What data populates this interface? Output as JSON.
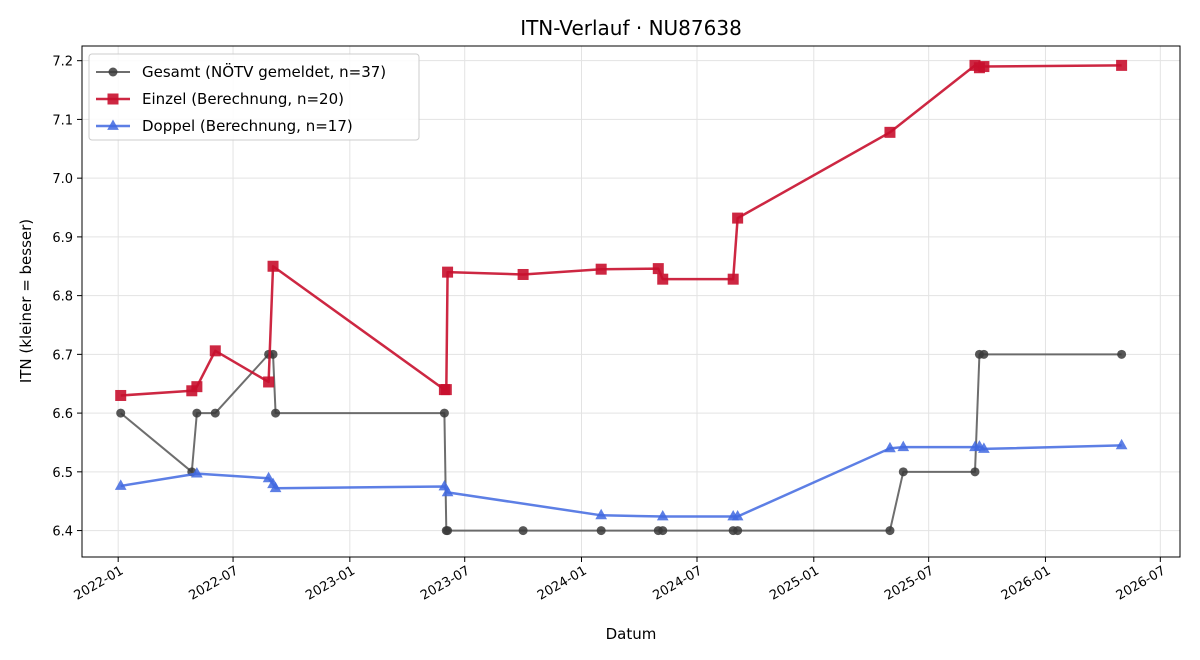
{
  "chart_data": {
    "type": "line",
    "title": "ITN-Verlauf · NU87638",
    "xlabel": "Datum",
    "ylabel": "ITN  (kleiner = besser)",
    "x_axis_type": "date",
    "xlim": [
      "2021-11-05",
      "2026-08-01"
    ],
    "ylim": [
      6.355,
      7.225
    ],
    "y_ticks": [
      6.4,
      6.5,
      6.6,
      6.7,
      6.8,
      6.9,
      7.0,
      7.1,
      7.2
    ],
    "x_ticks": [
      "2022-01",
      "2022-07",
      "2023-01",
      "2023-07",
      "2024-01",
      "2024-07",
      "2025-01",
      "2025-07",
      "2026-01",
      "2026-07"
    ],
    "grid": true,
    "legend_position": "top-left",
    "series": [
      {
        "name": "Gesamt (NÖTV gemeldet, n=37)",
        "color": "#555555",
        "marker": "circle",
        "points": [
          [
            "2022-01-05",
            6.6
          ],
          [
            "2022-04-27",
            6.5
          ],
          [
            "2022-05-05",
            6.6
          ],
          [
            "2022-06-03",
            6.6
          ],
          [
            "2022-08-26",
            6.7
          ],
          [
            "2022-09-02",
            6.7
          ],
          [
            "2022-09-06",
            6.6
          ],
          [
            "2023-05-30",
            6.6
          ],
          [
            "2023-06-02",
            6.4
          ],
          [
            "2023-06-04",
            6.4
          ],
          [
            "2023-10-01",
            6.4
          ],
          [
            "2024-02-01",
            6.4
          ],
          [
            "2024-05-01",
            6.4
          ],
          [
            "2024-05-08",
            6.4
          ],
          [
            "2024-08-27",
            6.4
          ],
          [
            "2024-09-03",
            6.4
          ],
          [
            "2025-05-01",
            6.4
          ],
          [
            "2025-05-22",
            6.5
          ],
          [
            "2025-09-12",
            6.5
          ],
          [
            "2025-09-19",
            6.7
          ],
          [
            "2025-09-26",
            6.7
          ],
          [
            "2026-05-01",
            6.7
          ]
        ]
      },
      {
        "name": "Einzel (Berechnung, n=20)",
        "color": "#c8102e",
        "marker": "square",
        "points": [
          [
            "2022-01-05",
            6.63
          ],
          [
            "2022-04-27",
            6.638
          ],
          [
            "2022-05-05",
            6.645
          ],
          [
            "2022-06-03",
            6.706
          ],
          [
            "2022-08-26",
            6.653
          ],
          [
            "2022-09-02",
            6.85
          ],
          [
            "2023-05-30",
            6.64
          ],
          [
            "2023-06-02",
            6.64
          ],
          [
            "2023-06-04",
            6.84
          ],
          [
            "2023-10-01",
            6.836
          ],
          [
            "2024-02-01",
            6.845
          ],
          [
            "2024-05-01",
            6.846
          ],
          [
            "2024-05-08",
            6.828
          ],
          [
            "2024-08-27",
            6.828
          ],
          [
            "2024-09-03",
            6.932
          ],
          [
            "2025-05-01",
            7.078
          ],
          [
            "2025-09-12",
            7.192
          ],
          [
            "2025-09-19",
            7.188
          ],
          [
            "2025-09-26",
            7.19
          ],
          [
            "2026-05-01",
            7.192
          ]
        ]
      },
      {
        "name": "Doppel (Berechnung, n=17)",
        "color": "#4169e1",
        "marker": "triangle",
        "points": [
          [
            "2022-01-05",
            6.476
          ],
          [
            "2022-05-05",
            6.497
          ],
          [
            "2022-08-26",
            6.489
          ],
          [
            "2022-09-02",
            6.479
          ],
          [
            "2022-09-06",
            6.472
          ],
          [
            "2023-05-30",
            6.475
          ],
          [
            "2023-06-04",
            6.465
          ],
          [
            "2024-02-01",
            6.426
          ],
          [
            "2024-05-08",
            6.424
          ],
          [
            "2024-08-27",
            6.424
          ],
          [
            "2024-09-03",
            6.424
          ],
          [
            "2025-05-01",
            6.54
          ],
          [
            "2025-05-22",
            6.542
          ],
          [
            "2025-09-12",
            6.542
          ],
          [
            "2025-09-19",
            6.543
          ],
          [
            "2025-09-26",
            6.539
          ],
          [
            "2026-05-01",
            6.545
          ]
        ]
      }
    ]
  }
}
